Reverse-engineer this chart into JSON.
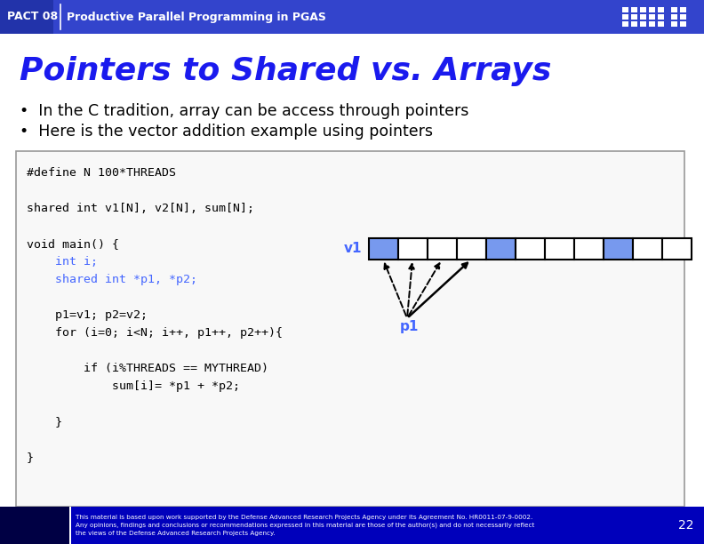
{
  "title": "Pointers to Shared vs. Arrays",
  "header_text": "PACT 08",
  "header_subtitle": "Productive Parallel Programming in PGAS",
  "bullet1": "In the C tradition, array can be access through pointers",
  "bullet2": "Here is the vector addition example using pointers",
  "code_lines": [
    "#define N 100*THREADS",
    "",
    "shared int v1[N], v2[N], sum[N];",
    "",
    "void main() {",
    "    int i;",
    "    shared int *p1, *p2;",
    "",
    "    p1=v1; p2=v2;",
    "    for (i=0; i<N; i++, p1++, p2++){",
    "",
    "        if (i%THREADS == MYTHREAD)",
    "            sum[i]= *p1 + *p2;",
    "",
    "    }",
    "",
    "}"
  ],
  "bg_color": "#ffffff",
  "header_bg": "#3344cc",
  "header_fg": "#ffffff",
  "title_color": "#1a1aee",
  "bullet_color": "#000000",
  "code_bg": "#f8f8f8",
  "code_border": "#999999",
  "code_normal_color": "#000000",
  "code_highlight_color": "#4466ff",
  "array_blue_color": "#7799ee",
  "array_border_color": "#000000",
  "footer_bg": "#0000bb",
  "footer_text_color": "#ffffff",
  "footer_text": "This material is based upon work supported by the Defense Advanced Research Projects Agency under its Agreement No. HR0011-07-9-0002.\nAny opinions, findings and conclusions or recommendations expressed in this material are those of the author(s) and do not necessarily reflect\nthe views of the Defense Advanced Research Projects Agency.",
  "page_number": "22",
  "ibm_stripe_color": "#6666dd"
}
